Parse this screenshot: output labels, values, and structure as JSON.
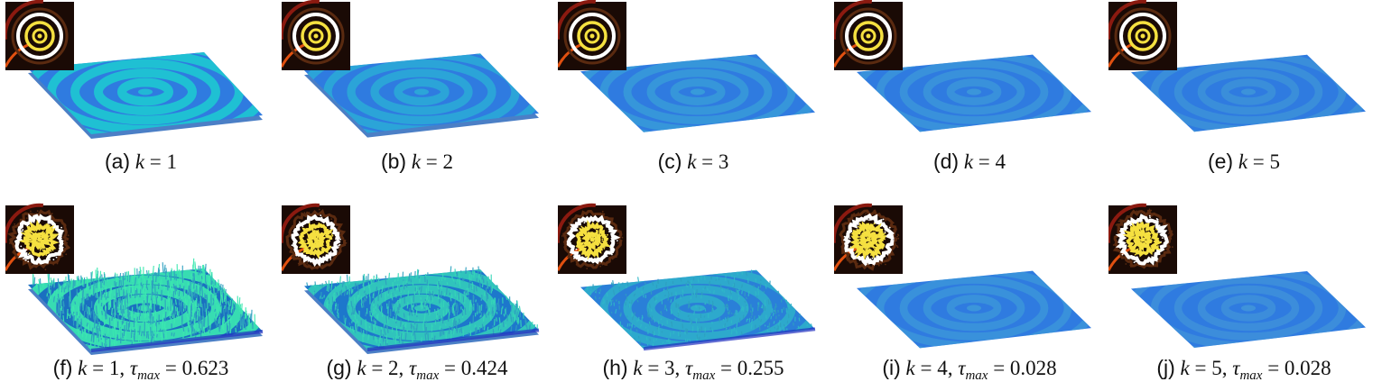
{
  "panels": [
    {
      "id": "a",
      "label": "(a)",
      "k": "1",
      "tau": null,
      "noise": 0.0,
      "amplitude": 1.0,
      "surface_colors": [
        "#2f7be0",
        "#1ec8d2"
      ],
      "inset_noise": 0.0
    },
    {
      "id": "b",
      "label": "(b)",
      "k": "2",
      "tau": null,
      "noise": 0.0,
      "amplitude": 0.65,
      "surface_colors": [
        "#2f7be0",
        "#2bb0d6"
      ],
      "inset_noise": 0.0
    },
    {
      "id": "c",
      "label": "(c)",
      "k": "3",
      "tau": null,
      "noise": 0.0,
      "amplitude": 0.45,
      "surface_colors": [
        "#2f7be0",
        "#3aa2d8"
      ],
      "inset_noise": 0.0
    },
    {
      "id": "d",
      "label": "(d)",
      "k": "4",
      "tau": null,
      "noise": 0.0,
      "amplitude": 0.35,
      "surface_colors": [
        "#2f7be0",
        "#3e9cd8"
      ],
      "inset_noise": 0.0
    },
    {
      "id": "e",
      "label": "(e)",
      "k": "5",
      "tau": null,
      "noise": 0.0,
      "amplitude": 0.3,
      "surface_colors": [
        "#2f7be0",
        "#4098d8"
      ],
      "inset_noise": 0.0
    },
    {
      "id": "f",
      "label": "(f)",
      "k": "1",
      "tau": "0.623",
      "noise": 1.0,
      "amplitude": 1.0,
      "surface_colors": [
        "#1a6fc0",
        "#3be8b0"
      ],
      "inset_noise": 1.0
    },
    {
      "id": "g",
      "label": "(g)",
      "k": "2",
      "tau": "0.424",
      "noise": 0.7,
      "amplitude": 0.75,
      "surface_colors": [
        "#1d77cc",
        "#35d6b8"
      ],
      "inset_noise": 0.8
    },
    {
      "id": "h",
      "label": "(h)",
      "k": "3",
      "tau": "0.255",
      "noise": 0.45,
      "amplitude": 0.55,
      "surface_colors": [
        "#2a7fd8",
        "#2fb8c8"
      ],
      "inset_noise": 0.9
    },
    {
      "id": "i",
      "label": "(i)",
      "k": "4",
      "tau": "0.028",
      "noise": 0.0,
      "amplitude": 0.35,
      "surface_colors": [
        "#2f7be0",
        "#3e9cd8"
      ],
      "inset_noise": 1.0
    },
    {
      "id": "j",
      "label": "(j)",
      "k": "5",
      "tau": "0.028",
      "noise": 0.0,
      "amplitude": 0.25,
      "surface_colors": [
        "#2f7be0",
        "#4398d8"
      ],
      "inset_noise": 1.0
    }
  ],
  "math": {
    "k_symbol": "k",
    "equals": "=",
    "tau_symbol": "τ",
    "tau_sub": "max"
  },
  "colors": {
    "inset_background": "#1a0a05",
    "inset_ring_outer": "#ffffff",
    "inset_ring_inner": "#f5e040",
    "inset_corner": "#e05010"
  }
}
